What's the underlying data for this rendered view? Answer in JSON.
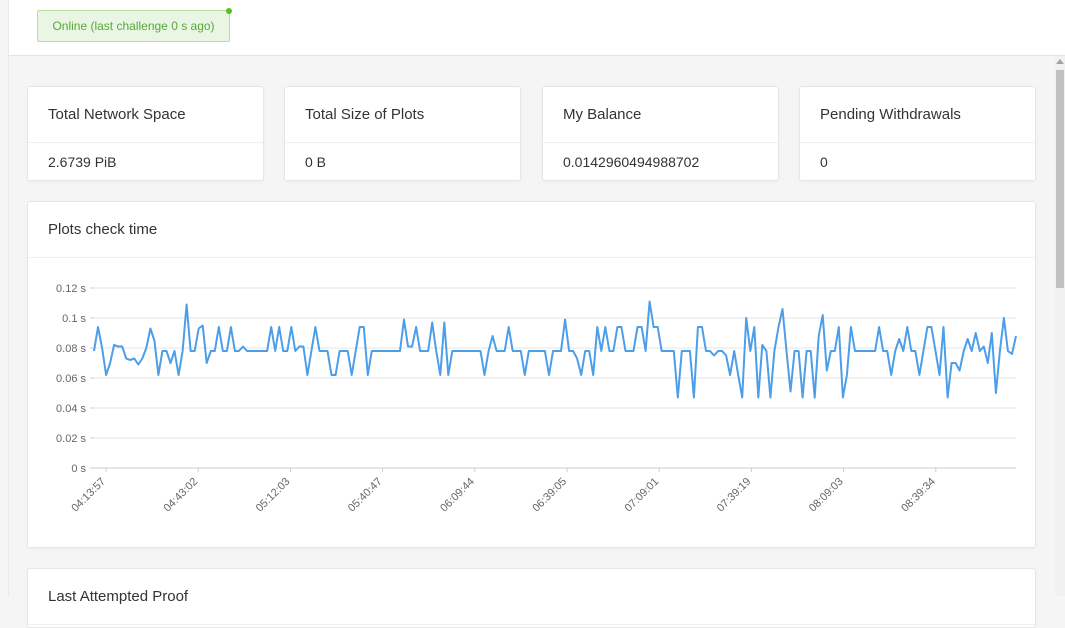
{
  "status": {
    "text": "Online (last challenge 0 s ago)",
    "color": "#58a839"
  },
  "stats": [
    {
      "title": "Total Network Space",
      "value": "2.6739 PiB"
    },
    {
      "title": "Total Size of Plots",
      "value": "0 B"
    },
    {
      "title": "My Balance",
      "value": "0.0142960494988702"
    },
    {
      "title": "Pending Withdrawals",
      "value": "0"
    }
  ],
  "chart_card": {
    "title": "Plots check time"
  },
  "proof_card": {
    "title": "Last Attempted Proof"
  },
  "chart_data": {
    "type": "line",
    "title": "Plots check time",
    "xlabel": "",
    "ylabel": "",
    "y_unit": "s",
    "ylim": [
      0,
      0.12
    ],
    "y_ticks": [
      "0 s",
      "0.02 s",
      "0.04 s",
      "0.06 s",
      "0.08 s",
      "0.1 s",
      "0.12 s"
    ],
    "x_ticks": [
      "04:13:57",
      "04:43:02",
      "05:12:03",
      "05:40:47",
      "06:09:44",
      "06:39:05",
      "07:09:01",
      "07:39:19",
      "08:09:03",
      "08:39:34"
    ],
    "grid": true,
    "color": "#4c9ee8",
    "series": [
      {
        "values": [
          0.078,
          0.094,
          0.08,
          0.062,
          0.07,
          0.082,
          0.081,
          0.081,
          0.073,
          0.072,
          0.073,
          0.069,
          0.073,
          0.08,
          0.093,
          0.085,
          0.062,
          0.078,
          0.078,
          0.07,
          0.078,
          0.062,
          0.078,
          0.109,
          0.078,
          0.078,
          0.093,
          0.095,
          0.07,
          0.078,
          0.078,
          0.094,
          0.078,
          0.078,
          0.094,
          0.078,
          0.078,
          0.081,
          0.078,
          0.078,
          0.078,
          0.078,
          0.078,
          0.078,
          0.094,
          0.078,
          0.094,
          0.078,
          0.078,
          0.094,
          0.078,
          0.081,
          0.081,
          0.062,
          0.078,
          0.094,
          0.078,
          0.078,
          0.078,
          0.062,
          0.062,
          0.078,
          0.078,
          0.078,
          0.062,
          0.078,
          0.094,
          0.094,
          0.062,
          0.078,
          0.078,
          0.078,
          0.078,
          0.078,
          0.078,
          0.078,
          0.078,
          0.099,
          0.081,
          0.081,
          0.094,
          0.078,
          0.078,
          0.078,
          0.097,
          0.078,
          0.062,
          0.097,
          0.062,
          0.078,
          0.078,
          0.078,
          0.078,
          0.078,
          0.078,
          0.078,
          0.078,
          0.062,
          0.078,
          0.088,
          0.078,
          0.078,
          0.078,
          0.094,
          0.078,
          0.078,
          0.078,
          0.062,
          0.078,
          0.078,
          0.078,
          0.078,
          0.078,
          0.062,
          0.078,
          0.078,
          0.078,
          0.099,
          0.078,
          0.078,
          0.073,
          0.062,
          0.078,
          0.078,
          0.062,
          0.094,
          0.078,
          0.094,
          0.078,
          0.078,
          0.094,
          0.094,
          0.078,
          0.078,
          0.078,
          0.094,
          0.094,
          0.078,
          0.111,
          0.094,
          0.094,
          0.078,
          0.078,
          0.078,
          0.078,
          0.047,
          0.078,
          0.078,
          0.078,
          0.047,
          0.094,
          0.094,
          0.078,
          0.078,
          0.075,
          0.078,
          0.078,
          0.075,
          0.062,
          0.078,
          0.062,
          0.047,
          0.1,
          0.078,
          0.094,
          0.047,
          0.082,
          0.078,
          0.047,
          0.078,
          0.094,
          0.106,
          0.078,
          0.051,
          0.078,
          0.078,
          0.047,
          0.078,
          0.078,
          0.047,
          0.088,
          0.102,
          0.065,
          0.078,
          0.078,
          0.094,
          0.047,
          0.062,
          0.094,
          0.078,
          0.078,
          0.078,
          0.078,
          0.078,
          0.078,
          0.094,
          0.078,
          0.078,
          0.062,
          0.078,
          0.086,
          0.078,
          0.094,
          0.078,
          0.078,
          0.062,
          0.078,
          0.094,
          0.094,
          0.078,
          0.062,
          0.094,
          0.047,
          0.07,
          0.07,
          0.065,
          0.078,
          0.086,
          0.078,
          0.09,
          0.078,
          0.081,
          0.07,
          0.09,
          0.05,
          0.078,
          0.1,
          0.078,
          0.076,
          0.088
        ]
      }
    ]
  }
}
